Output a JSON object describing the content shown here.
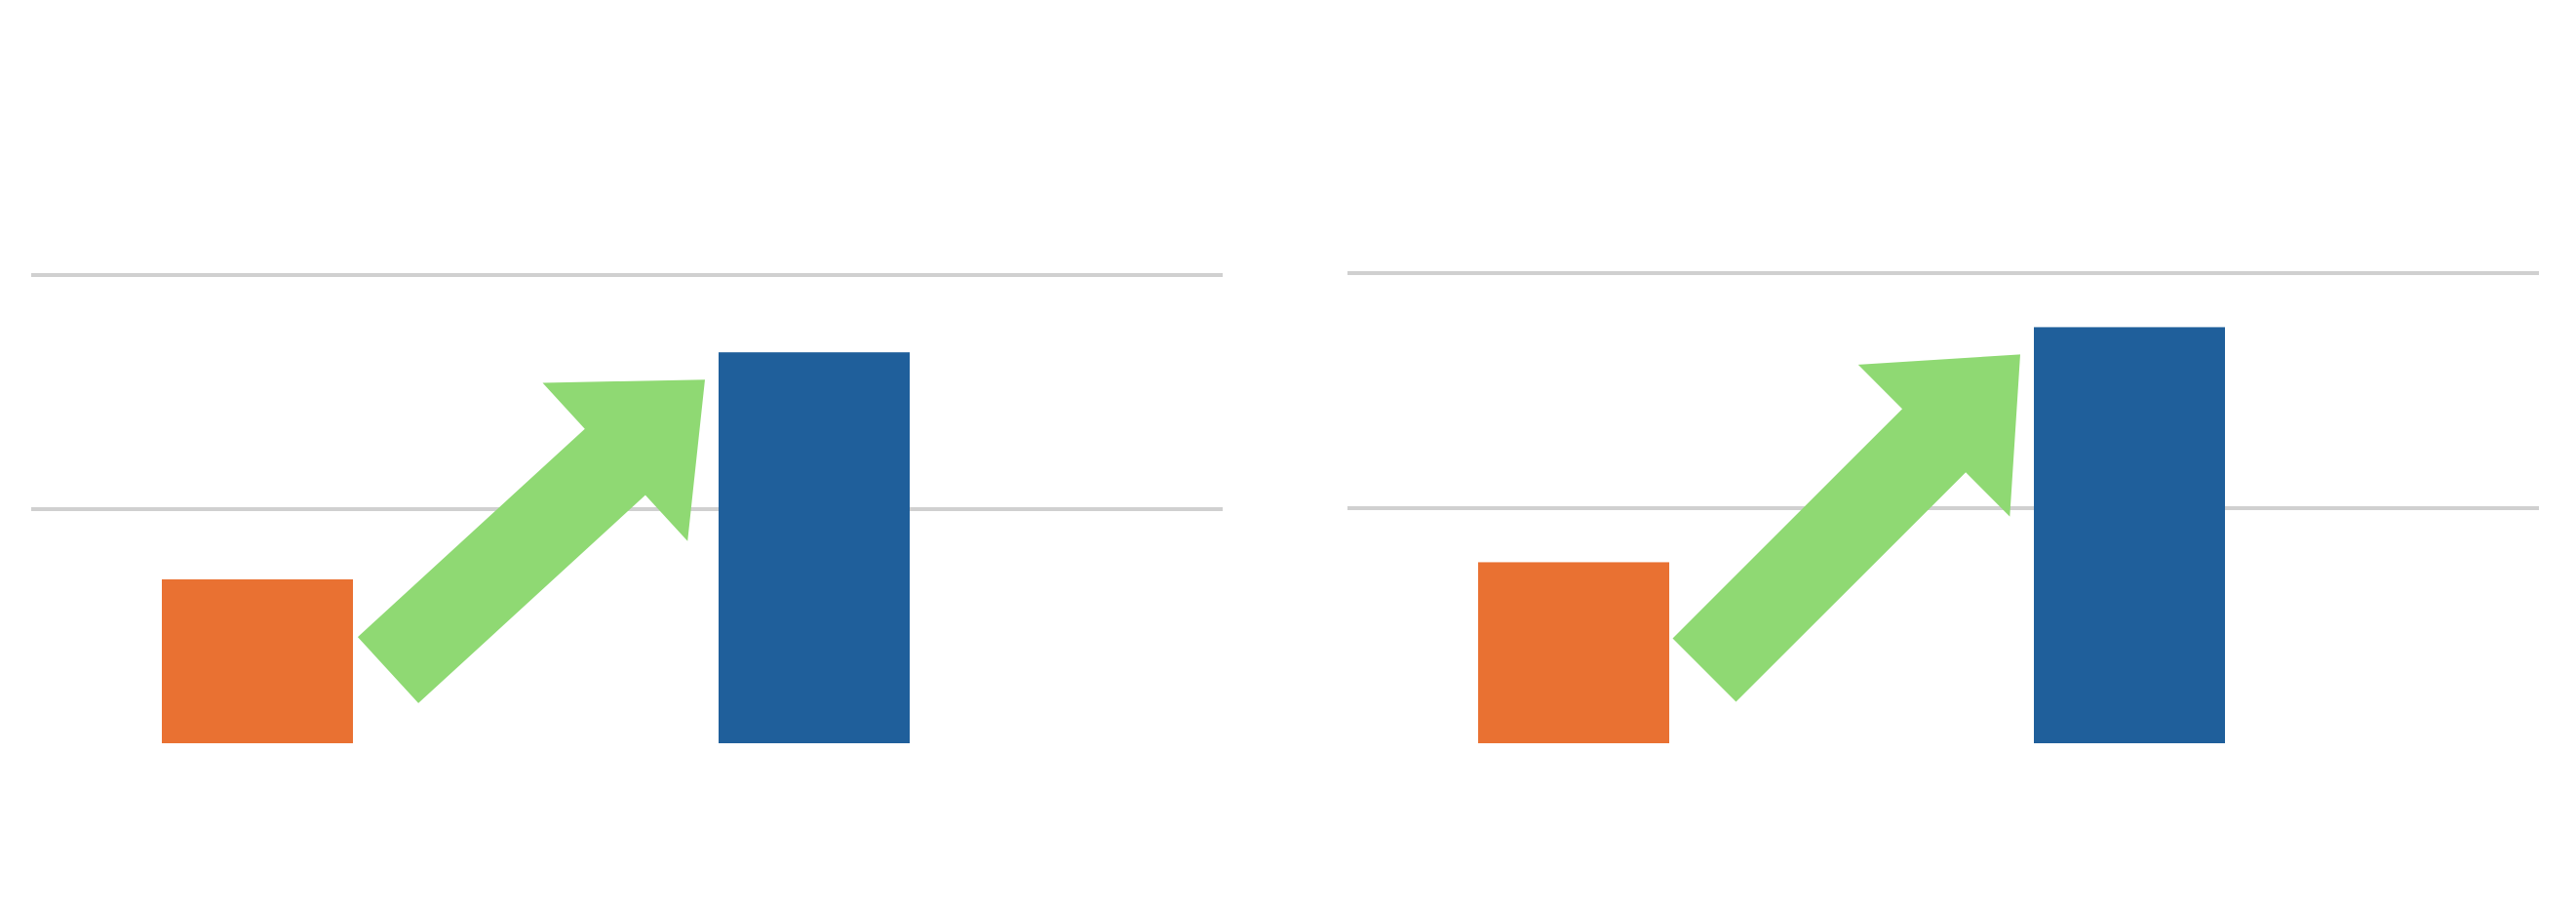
{
  "chart_data": [
    {
      "type": "bar",
      "categories": [
        "",
        ""
      ],
      "values": [
        0.7,
        1.67
      ],
      "ylim": [
        0,
        2
      ],
      "grid": true,
      "colors": [
        "#E97132",
        "#1F5F9B"
      ],
      "annotation": {
        "type": "arrow",
        "color": "#8FD973",
        "direction": "up-right"
      }
    },
    {
      "type": "bar",
      "categories": [
        "",
        ""
      ],
      "values": [
        0.77,
        1.77
      ],
      "ylim": [
        0,
        2
      ],
      "grid": true,
      "colors": [
        "#E97132",
        "#1F5F9B"
      ],
      "annotation": {
        "type": "arrow",
        "color": "#8FD973",
        "direction": "up-right"
      }
    }
  ],
  "colors": {
    "grid": "#D0D0D0",
    "background": "#FFFFFF"
  }
}
